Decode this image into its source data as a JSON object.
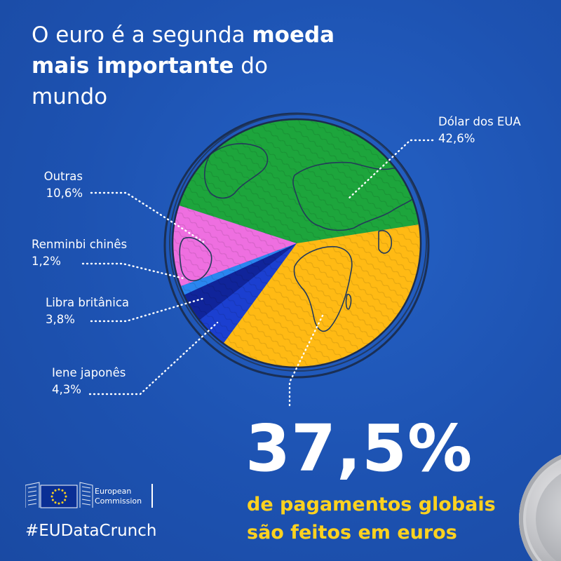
{
  "headline": {
    "part1": "O euro é a segunda ",
    "bold1": "moeda",
    "bold2": "mais importante",
    "part2": " do",
    "part3": "mundo"
  },
  "chart_data": {
    "type": "pie",
    "slices": [
      {
        "name": "Dólar dos EUA",
        "value": 42.6,
        "label": "42,6%",
        "color": "#1da53c"
      },
      {
        "name": "Euro",
        "value": 37.5,
        "label": "37,5%",
        "color": "#ffba14"
      },
      {
        "name": "Iene japonês",
        "value": 4.3,
        "label": "4,3%",
        "color": "#1b3fd0"
      },
      {
        "name": "Libra britânica",
        "value": 3.8,
        "label": "3,8%",
        "color": "#10249a"
      },
      {
        "name": "Renminbi chinês",
        "value": 1.2,
        "label": "1,2%",
        "color": "#2a86f0"
      },
      {
        "name": "Outras",
        "value": 10.6,
        "label": "10,6%",
        "color": "#ee6fe0"
      }
    ],
    "legend": "callouts"
  },
  "labels": {
    "usd_name": "Dólar dos EUA",
    "usd_value": "42,6%",
    "other_name": "Outras",
    "other_value": "10,6%",
    "cny_name": "Renminbi chinês",
    "cny_value": "1,2%",
    "gbp_name": "Libra britânica",
    "gbp_value": "3,8%",
    "jpy_name": "Iene japonês",
    "jpy_value": "4,3%"
  },
  "highlight": {
    "number": "37,5%",
    "line1": "de pagamentos globais",
    "line2": "são feitos em euros"
  },
  "logo": {
    "line1": "European",
    "line2": "Commission"
  },
  "hashtag": "#EUDataCrunch",
  "colors": {
    "background": "#1f57b8",
    "accent": "#ffd21f",
    "text": "#ffffff"
  }
}
